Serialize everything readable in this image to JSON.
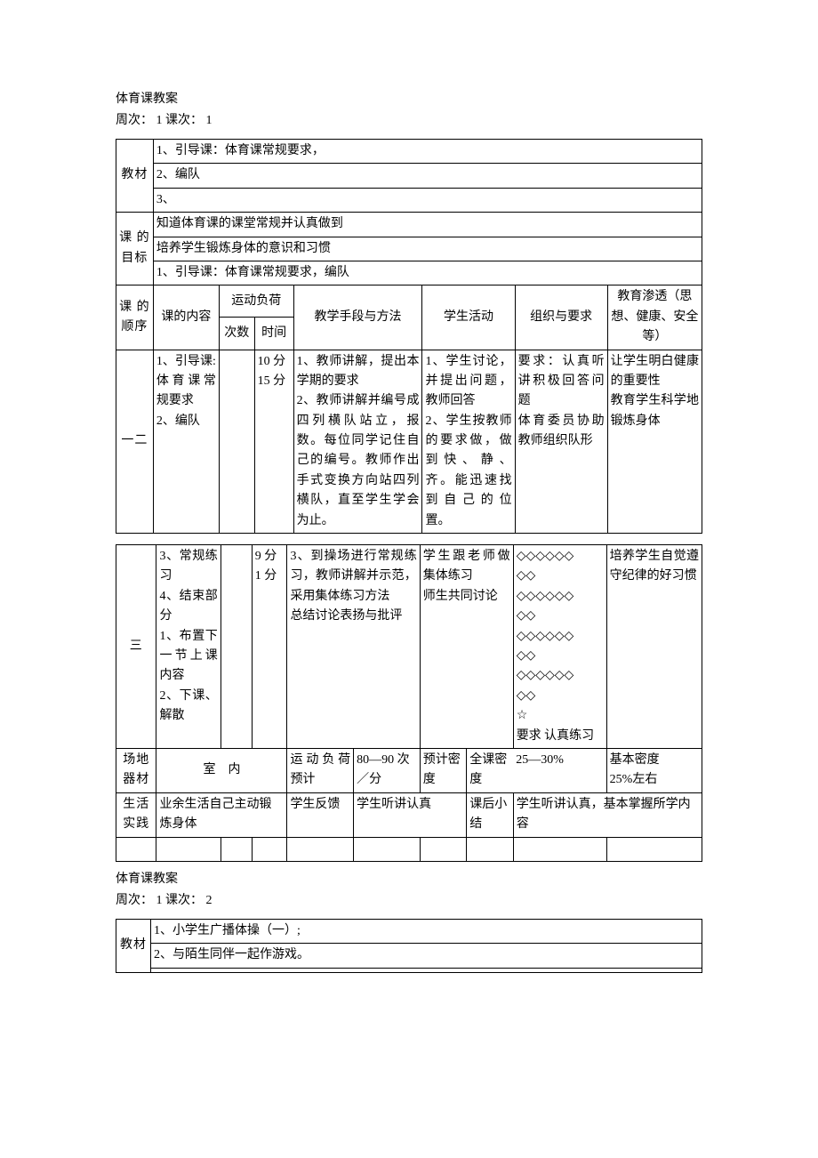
{
  "lesson1": {
    "doc_title": "体育课教案",
    "week_label": "周次：",
    "week_value": "1",
    "session_label": "课次：",
    "session_value": "1",
    "jiaocai_label": "教材",
    "jiaocai_rows": [
      "1、引导课：体育课常规要求，",
      "2、编队",
      "3、"
    ],
    "mubiao_label": "课 的目标",
    "mubiao_rows": [
      "知道体育课的课堂常规并认真做到",
      "培养学生锻炼身体的意识和习惯",
      "1、引导课：体育课常规要求，编队"
    ],
    "shunxu_label": "课 的顺序",
    "col_content": "课的内容",
    "col_load": "运动负荷",
    "col_count": "次数",
    "col_time": "时间",
    "col_method": "教学手段与方法",
    "col_activity": "学生活动",
    "col_org": "组织与要求",
    "col_edu": "教育渗透（思想、健康、安全等）",
    "t1_r1": {
      "seq": "一二",
      "content": "1、引导课: 体育课常规要求\n2、编队",
      "count": "",
      "time": "10 分\n15 分",
      "method": "1、教师讲解，提出本学期的要求\n2、教师讲解并编号成四列横队站立，报数。每位同学记住自己的编号。教师作出手式变换方向站四列横队，直至学生学会为止。",
      "activity": "1、学生讨论，并提出问题，教师回答\n2、学生按教师的要求做，做到快、静、齐。能迅速找到自己的位置。",
      "org": "要求：认真听讲积极回答问题\n体育委员协助教师组织队形",
      "edu": "让学生明白健康的重要性\n教育学生科学地锻炼身体"
    },
    "t2_r1": {
      "seq": "三",
      "content": "3、常规练习\n4、结束部分\n1、布置下一节上课内容\n2、下课、解散",
      "count": "",
      "time": "9 分\n1 分",
      "method": "3、到操场进行常规练习，教师讲解并示范，采用集体练习方法\n总结讨论表扬与批评",
      "activity": "学生跟老师做集体练习\n师生共同讨论",
      "org": "◇◇◇◇◇◇\n◇◇\n◇◇◇◇◇◇\n◇◇\n◇◇◇◇◇◇\n◇◇\n◇◇◇◇◇◇\n◇◇\n☆\n要求 认真练习",
      "edu": "培养学生自觉遵守纪律的好习惯"
    },
    "changdi_label": "场地器材",
    "changdi_value": "室　内",
    "load_forecast_label": "运动负荷预计",
    "load_forecast_value": "80—90 次／分",
    "density_forecast_label": "预计密度",
    "full_density_label": "全课密度",
    "full_density_value": "25—30%",
    "basic_density_label": "基本密度",
    "basic_density_value": "25%左右",
    "shenghuo_label": "生活实践",
    "shenghuo_value": "业余生活自己主动锻炼身体",
    "feedback_label": "学生反馈",
    "feedback_value": "学生听讲认真",
    "summary_label": "课后小结",
    "summary_value": "学生听讲认真，基本掌握所学内容"
  },
  "lesson2": {
    "doc_title": "体育课教案",
    "week_label": "周次：",
    "week_value": "1",
    "session_label": "课次：",
    "session_value": "2",
    "jiaocai_label": "教材",
    "jiaocai_rows": [
      "1、小学生广播体操（一）;",
      "2、与陌生同伴一起作游戏。",
      ""
    ]
  },
  "colors": {
    "text": "#000000",
    "background": "#ffffff",
    "border": "#000000"
  }
}
